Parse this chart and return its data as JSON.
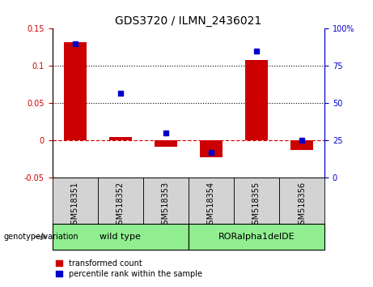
{
  "title": "GDS3720 / ILMN_2436021",
  "samples": [
    "GSM518351",
    "GSM518352",
    "GSM518353",
    "GSM518354",
    "GSM518355",
    "GSM518356"
  ],
  "red_bars": [
    0.132,
    0.005,
    -0.008,
    -0.022,
    0.108,
    -0.013
  ],
  "blue_dots_pct": [
    90,
    57,
    30,
    17,
    85,
    25
  ],
  "left_ylim": [
    -0.05,
    0.15
  ],
  "right_ylim": [
    0,
    100
  ],
  "left_yticks": [
    -0.05,
    0,
    0.05,
    0.1,
    0.15
  ],
  "right_yticks": [
    0,
    25,
    50,
    75,
    100
  ],
  "group1_label": "wild type",
  "group1_indices": [
    0,
    1,
    2
  ],
  "group2_label": "RORalpha1delDE",
  "group2_indices": [
    3,
    4,
    5
  ],
  "group_bg_color": "#90ee90",
  "sample_bg_color": "#d3d3d3",
  "bar_color": "#cc0000",
  "dot_color": "#0000cc",
  "zero_line_color": "#cc0000",
  "hline_color": "black",
  "legend_label_red": "transformed count",
  "legend_label_blue": "percentile rank within the sample",
  "genotype_label": "genotype/variation",
  "left_tick_color": "#cc0000",
  "right_tick_color": "#0000cc"
}
